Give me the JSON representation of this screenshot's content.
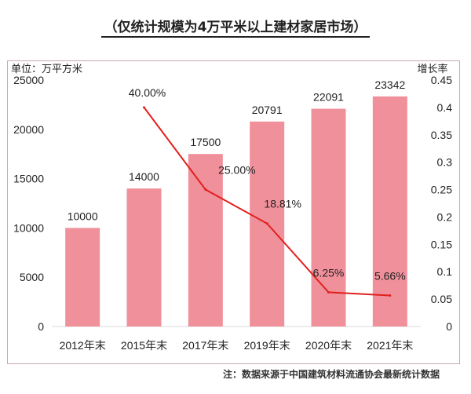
{
  "subtitle": "（仅统计规模为4万平米以上建材家居市场）",
  "note": "注：数据来源于中国建筑材料流通协会最新统计数据",
  "chart_data": {
    "type": "bar+line",
    "categories": [
      "2012年末",
      "2015年末",
      "2017年末",
      "2019年末",
      "2020年末",
      "2021年末"
    ],
    "series": [
      {
        "type": "bar",
        "axis": "left",
        "values": [
          10000,
          14000,
          17500,
          20791,
          22091,
          23342
        ],
        "labels": [
          "10000",
          "14000",
          "17500",
          "20791",
          "22091",
          "23342"
        ],
        "color": "#f0909b"
      },
      {
        "type": "line",
        "axis": "right",
        "values": [
          null,
          0.4,
          0.25,
          0.1881,
          0.0625,
          0.0566
        ],
        "labels": [
          "",
          "40.00%",
          "25.00%",
          "18.81%",
          "6.25%",
          "5.66%"
        ],
        "color": "#e0211d"
      }
    ],
    "ylabel_left": "单位：万平方米",
    "ylabel_right": "增长率",
    "ylim_left": [
      0,
      25000
    ],
    "yticks_left": [
      "0",
      "5000",
      "10000",
      "15000",
      "20000",
      "25000"
    ],
    "ylim_right": [
      0,
      0.45
    ],
    "yticks_right": [
      "0",
      "0.05",
      "0.1",
      "0.15",
      "0.2",
      "0.25",
      "0.3",
      "0.35",
      "0.4",
      "0.45"
    ],
    "grid": false
  }
}
